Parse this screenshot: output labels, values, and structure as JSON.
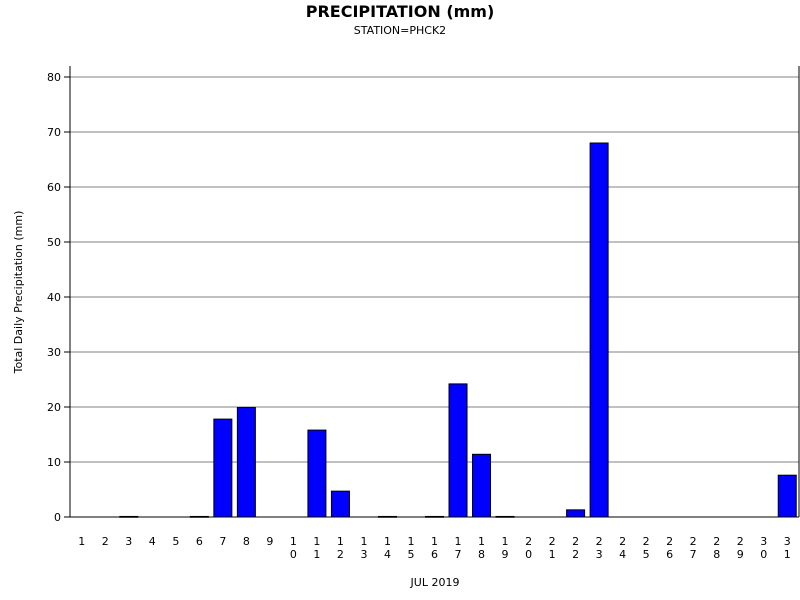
{
  "chart_data": {
    "type": "bar",
    "title": "PRECIPITATION (mm)",
    "subtitle": "STATION=PHCK2",
    "xlabel": "JUL 2019",
    "ylabel": "Total Daily Precipitation (mm)",
    "ylim": [
      0,
      80
    ],
    "yticks": [
      "0",
      "10",
      "20",
      "30",
      "40",
      "50",
      "60",
      "70",
      "80"
    ],
    "grid": true,
    "bar_color": "#0000ff",
    "categories": [
      "1",
      "2",
      "3",
      "4",
      "5",
      "6",
      "7",
      "8",
      "9",
      "10",
      "11",
      "12",
      "13",
      "14",
      "15",
      "16",
      "17",
      "18",
      "19",
      "20",
      "21",
      "22",
      "23",
      "24",
      "25",
      "26",
      "27",
      "28",
      "29",
      "30",
      "31"
    ],
    "values": [
      0,
      0,
      0.1,
      0,
      0,
      0.1,
      17.8,
      19.9,
      0,
      0,
      15.8,
      4.7,
      0,
      0.1,
      0,
      0.1,
      24.2,
      11.4,
      0.1,
      0,
      0,
      1.3,
      68.0,
      0,
      0,
      0,
      0,
      0,
      0,
      0,
      7.6
    ]
  }
}
